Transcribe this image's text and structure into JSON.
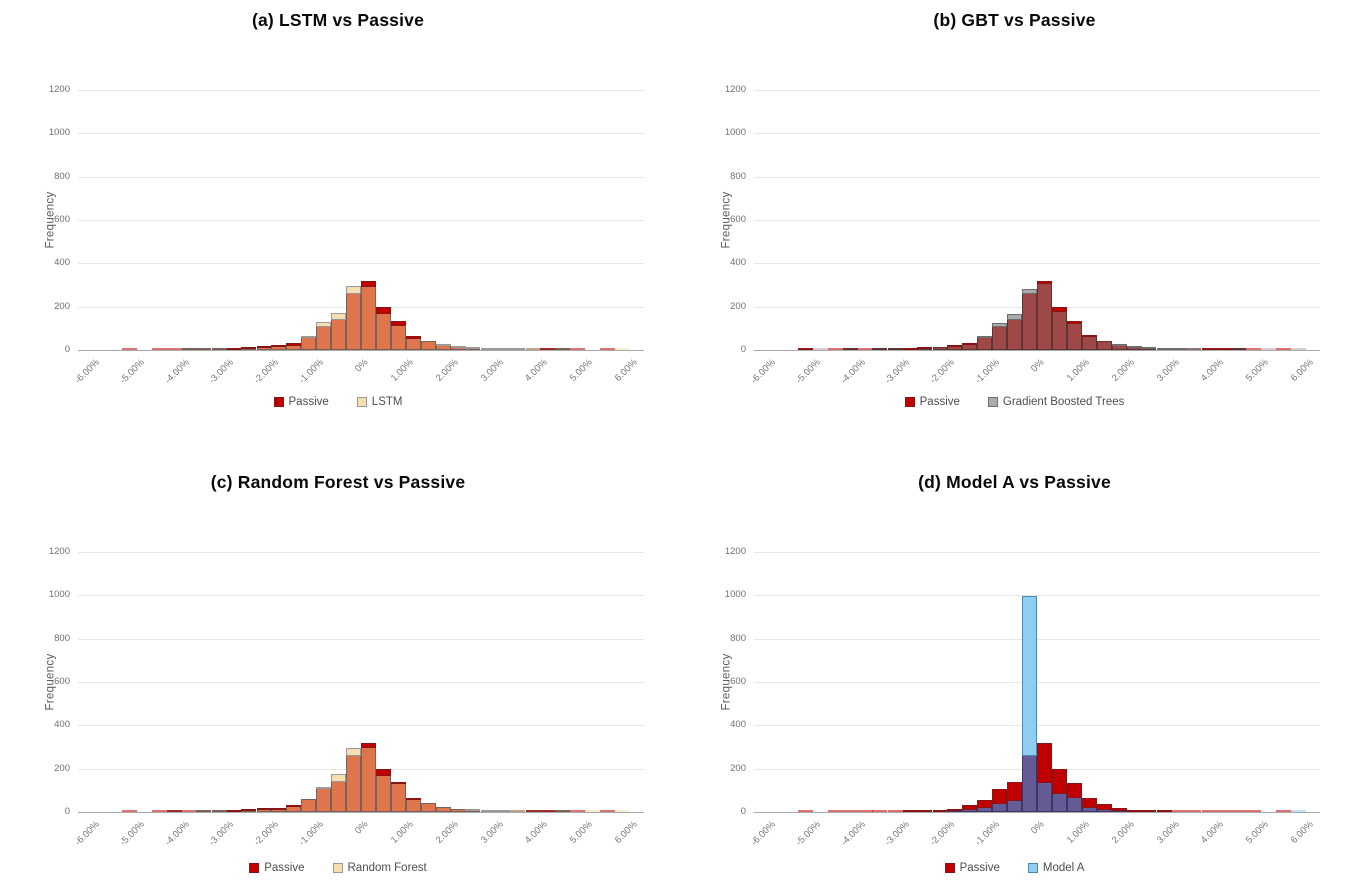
{
  "chart_data": [
    {
      "type": "histogram",
      "panel": "a",
      "title": "(a) LSTM vs Passive",
      "ylabel": "Frequency",
      "ylim": [
        0,
        1200
      ],
      "y_ticks": [
        0,
        200,
        400,
        600,
        800,
        1000,
        1200
      ],
      "x_tick_labels": [
        "-6.00%",
        "-5.00%",
        "-4.00%",
        "-3.00%",
        "-2.00%",
        "-1.00%",
        "0%",
        "1.00%",
        "2.00%",
        "3.00%",
        "4.00%",
        "5.00%",
        "6.00%"
      ],
      "x_range_pct": [
        -6,
        6
      ],
      "bin_width_pct": 0.3333,
      "bin_left_edges_pct": [
        -5.33,
        -5.0,
        -4.67,
        -4.33,
        -4.0,
        -3.67,
        -3.33,
        -3.0,
        -2.67,
        -2.33,
        -2.0,
        -1.67,
        -1.33,
        -1.0,
        -0.67,
        -0.33,
        0.0,
        0.33,
        0.67,
        1.0,
        1.33,
        1.67,
        2.0,
        2.33,
        2.67,
        3.0,
        3.33,
        3.67,
        4.0,
        4.33,
        4.67,
        5.0,
        5.33,
        5.67
      ],
      "series": [
        {
          "name": "Passive",
          "fill": "#C00000",
          "border": "#8A1414",
          "values": [
            4,
            0,
            4,
            3,
            2,
            2,
            3,
            6,
            10,
            14,
            20,
            35,
            60,
            110,
            145,
            265,
            325,
            205,
            140,
            70,
            40,
            25,
            15,
            10,
            6,
            4,
            3,
            4,
            5,
            2,
            3,
            0,
            3,
            0
          ]
        },
        {
          "name": "LSTM",
          "fill": "#F5DEB0",
          "border": "#9A9A9A",
          "values": [
            0,
            0,
            0,
            0,
            2,
            2,
            3,
            5,
            8,
            12,
            18,
            25,
            65,
            135,
            175,
            300,
            295,
            170,
            115,
            55,
            40,
            30,
            20,
            18,
            15,
            12,
            8,
            5,
            3,
            2,
            0,
            0,
            0,
            5
          ]
        }
      ],
      "overlap_fill": "#E0744A",
      "overlap_border": "#77625A",
      "legend_position": "bottom",
      "grid": "horizontal"
    },
    {
      "type": "histogram",
      "panel": "b",
      "title": "(b) GBT vs Passive",
      "ylabel": "Frequency",
      "ylim": [
        0,
        1200
      ],
      "y_ticks": [
        0,
        200,
        400,
        600,
        800,
        1000,
        1200
      ],
      "x_tick_labels": [
        "-6.00%",
        "-5.00%",
        "-4.00%",
        "-3.00%",
        "-2.00%",
        "-1.00%",
        "0%",
        "1.00%",
        "2.00%",
        "3.00%",
        "4.00%",
        "5.00%",
        "6.00%"
      ],
      "x_range_pct": [
        -6,
        6
      ],
      "bin_width_pct": 0.3333,
      "bin_left_edges_pct": [
        -5.33,
        -5.0,
        -4.67,
        -4.33,
        -4.0,
        -3.67,
        -3.33,
        -3.0,
        -2.67,
        -2.33,
        -2.0,
        -1.67,
        -1.33,
        -1.0,
        -0.67,
        -0.33,
        0.0,
        0.33,
        0.67,
        1.0,
        1.33,
        1.67,
        2.0,
        2.33,
        2.67,
        3.0,
        3.33,
        3.67,
        4.0,
        4.33,
        4.67,
        5.0,
        5.33,
        5.67
      ],
      "series": [
        {
          "name": "Passive",
          "fill": "#C00000",
          "border": "#8A1414",
          "values": [
            4,
            0,
            4,
            3,
            2,
            2,
            3,
            6,
            10,
            14,
            20,
            35,
            60,
            110,
            145,
            265,
            325,
            205,
            140,
            70,
            40,
            25,
            15,
            10,
            6,
            4,
            3,
            4,
            5,
            2,
            3,
            0,
            3,
            0
          ]
        },
        {
          "name": "Gradient Boosted Trees",
          "fill": "#ABABAB",
          "border": "#6E6E6E",
          "values": [
            3,
            3,
            0,
            3,
            0,
            2,
            3,
            5,
            8,
            14,
            18,
            30,
            70,
            130,
            170,
            285,
            310,
            180,
            125,
            65,
            40,
            28,
            20,
            15,
            10,
            8,
            5,
            3,
            2,
            2,
            0,
            2,
            0,
            3
          ]
        }
      ],
      "overlap_fill": "#9E4848",
      "overlap_border": "#5E3434",
      "legend_position": "bottom",
      "grid": "horizontal"
    },
    {
      "type": "histogram",
      "panel": "c",
      "title": "(c) Random Forest vs Passive",
      "ylabel": "Frequency",
      "ylim": [
        0,
        1200
      ],
      "y_ticks": [
        0,
        200,
        400,
        600,
        800,
        1000,
        1200
      ],
      "x_tick_labels": [
        "-6.00%",
        "-5.00%",
        "-4.00%",
        "-3.00%",
        "-2.00%",
        "-1.00%",
        "0%",
        "1.00%",
        "2.00%",
        "3.00%",
        "4.00%",
        "5.00%",
        "6.00%"
      ],
      "x_range_pct": [
        -6,
        6
      ],
      "bin_width_pct": 0.3333,
      "bin_left_edges_pct": [
        -5.33,
        -5.0,
        -4.67,
        -4.33,
        -4.0,
        -3.67,
        -3.33,
        -3.0,
        -2.67,
        -2.33,
        -2.0,
        -1.67,
        -1.33,
        -1.0,
        -0.67,
        -0.33,
        0.0,
        0.33,
        0.67,
        1.0,
        1.33,
        1.67,
        2.0,
        2.33,
        2.67,
        3.0,
        3.33,
        3.67,
        4.0,
        4.33,
        4.67,
        5.0,
        5.33,
        5.67
      ],
      "series": [
        {
          "name": "Passive",
          "fill": "#C00000",
          "border": "#8A1414",
          "values": [
            4,
            0,
            4,
            3,
            2,
            2,
            3,
            6,
            10,
            14,
            20,
            35,
            60,
            110,
            145,
            265,
            325,
            205,
            140,
            70,
            40,
            25,
            15,
            10,
            6,
            4,
            3,
            4,
            5,
            2,
            3,
            0,
            3,
            0
          ]
        },
        {
          "name": "Random Forest",
          "fill": "#F5DEB0",
          "border": "#9A9A9A",
          "values": [
            0,
            0,
            0,
            2,
            0,
            2,
            3,
            5,
            8,
            12,
            15,
            28,
            60,
            115,
            180,
            300,
            300,
            170,
            135,
            60,
            40,
            25,
            15,
            12,
            10,
            8,
            5,
            3,
            4,
            2,
            0,
            2,
            0,
            3
          ]
        }
      ],
      "overlap_fill": "#E0744A",
      "overlap_border": "#77625A",
      "legend_position": "bottom",
      "grid": "horizontal"
    },
    {
      "type": "histogram",
      "panel": "d",
      "title": "(d) Model A vs Passive",
      "ylabel": "Frequency",
      "ylim": [
        0,
        1200
      ],
      "y_ticks": [
        0,
        200,
        400,
        600,
        800,
        1000,
        1200
      ],
      "x_tick_labels": [
        "-6.00%",
        "-5.00%",
        "-4.00%",
        "-3.00%",
        "-2.00%",
        "-1.00%",
        "0%",
        "1.00%",
        "2.00%",
        "3.00%",
        "4.00%",
        "5.00%",
        "6.00%"
      ],
      "x_range_pct": [
        -6,
        6
      ],
      "bin_width_pct": 0.3333,
      "bin_left_edges_pct": [
        -5.33,
        -5.0,
        -4.67,
        -4.33,
        -4.0,
        -3.67,
        -3.33,
        -3.0,
        -2.67,
        -2.33,
        -2.0,
        -1.67,
        -1.33,
        -1.0,
        -0.67,
        -0.33,
        0.0,
        0.33,
        0.67,
        1.0,
        1.33,
        1.67,
        2.0,
        2.33,
        2.67,
        3.0,
        3.33,
        3.67,
        4.0,
        4.33,
        4.67,
        5.0,
        5.33,
        5.67
      ],
      "series": [
        {
          "name": "Passive",
          "fill": "#C00000",
          "border": "#8A1414",
          "values": [
            4,
            0,
            4,
            3,
            2,
            2,
            3,
            6,
            10,
            14,
            20,
            35,
            60,
            110,
            145,
            265,
            325,
            205,
            140,
            70,
            40,
            25,
            15,
            10,
            6,
            4,
            3,
            4,
            5,
            2,
            3,
            0,
            3,
            0
          ]
        },
        {
          "name": "Model A",
          "fill": "#8FCDF2",
          "border": "#4E86B0",
          "values": [
            0,
            0,
            0,
            0,
            0,
            0,
            0,
            0,
            3,
            5,
            8,
            15,
            25,
            40,
            55,
            1000,
            140,
            90,
            70,
            25,
            15,
            10,
            5,
            3,
            0,
            0,
            0,
            0,
            0,
            0,
            0,
            0,
            0,
            2
          ]
        }
      ],
      "overlap_fill": "#655C96",
      "overlap_border": "#3C3668",
      "legend_position": "bottom",
      "grid": "horizontal"
    }
  ]
}
